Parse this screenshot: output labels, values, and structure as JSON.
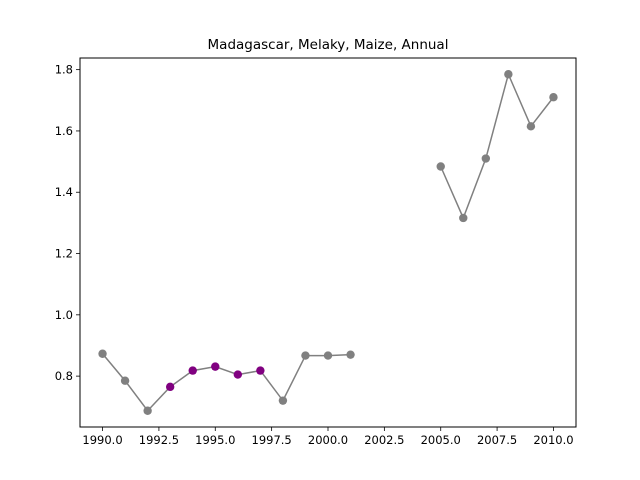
{
  "chart_data": {
    "type": "line",
    "title": "Madagascar, Melaky, Maize, Annual",
    "xlabel": "",
    "ylabel": "",
    "xlim": [
      1989.0,
      2011.0
    ],
    "ylim": [
      0.634,
      1.838
    ],
    "x_ticks": [
      1990.0,
      1992.5,
      1995.0,
      1997.5,
      2000.0,
      2002.5,
      2005.0,
      2007.5,
      2010.0
    ],
    "x_tick_labels": [
      "1990.0",
      "1992.5",
      "1995.0",
      "1997.5",
      "2000.0",
      "2002.5",
      "2005.0",
      "2007.5",
      "2010.0"
    ],
    "y_ticks": [
      0.8,
      1.0,
      1.2,
      1.4,
      1.6,
      1.8
    ],
    "y_tick_labels": [
      "0.8",
      "1.0",
      "1.2",
      "1.4",
      "1.6",
      "1.8"
    ],
    "grid": false,
    "line_color": "#808080",
    "highlight_color": "#800080",
    "segments": [
      [
        {
          "x": 1990,
          "y": 0.873,
          "highlight": false
        },
        {
          "x": 1991,
          "y": 0.785,
          "highlight": false
        },
        {
          "x": 1992,
          "y": 0.687,
          "highlight": false
        },
        {
          "x": 1993,
          "y": 0.765,
          "highlight": true
        },
        {
          "x": 1994,
          "y": 0.818,
          "highlight": true
        },
        {
          "x": 1995,
          "y": 0.831,
          "highlight": true
        },
        {
          "x": 1996,
          "y": 0.805,
          "highlight": true
        },
        {
          "x": 1997,
          "y": 0.818,
          "highlight": true
        },
        {
          "x": 1998,
          "y": 0.72,
          "highlight": false
        },
        {
          "x": 1999,
          "y": 0.867,
          "highlight": false
        },
        {
          "x": 2000,
          "y": 0.867,
          "highlight": false
        },
        {
          "x": 2001,
          "y": 0.87,
          "highlight": false
        }
      ],
      [
        {
          "x": 2005,
          "y": 1.484,
          "highlight": false
        },
        {
          "x": 2006,
          "y": 1.316,
          "highlight": false
        },
        {
          "x": 2007,
          "y": 1.51,
          "highlight": false
        },
        {
          "x": 2008,
          "y": 1.785,
          "highlight": false
        },
        {
          "x": 2009,
          "y": 1.615,
          "highlight": false
        },
        {
          "x": 2010,
          "y": 1.71,
          "highlight": false
        }
      ]
    ]
  }
}
